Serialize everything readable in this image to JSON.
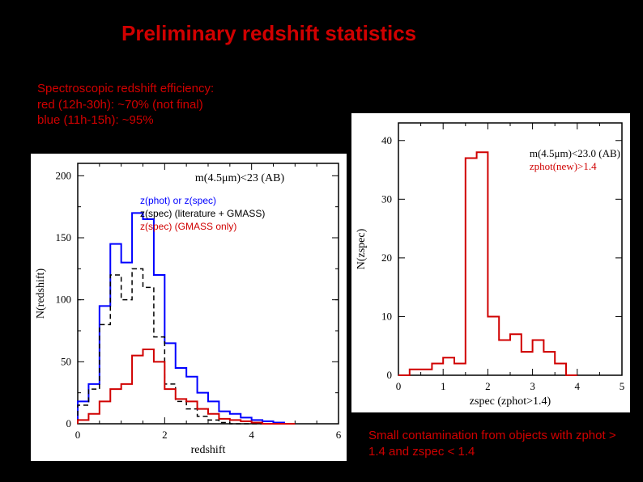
{
  "title": "Preliminary redshift statistics",
  "title_color": "#d00000",
  "efficiency": {
    "line1": "Spectroscopic redshift efficiency:",
    "line2": "red (12h-30h): ~70% (not final)",
    "line3": "blue (11h-15h): ~95%",
    "color": "#d00000"
  },
  "legend_left": {
    "lines": [
      "z(phot) or z(spec)",
      "z(spec) (literature + GMASS)",
      "z(spec) (GMASS only)"
    ],
    "colors": [
      "#0000ff",
      "#000000",
      "#d00000"
    ]
  },
  "chart_left": {
    "type": "histogram",
    "xlabel": "redshift",
    "ylabel": "N(redshift)",
    "xlim": [
      0,
      6
    ],
    "ylim": [
      0,
      210
    ],
    "xticks": [
      0,
      2,
      4,
      6
    ],
    "yticks": [
      0,
      50,
      100,
      150,
      200
    ],
    "yminor": [
      25,
      75,
      100,
      125,
      175
    ],
    "annotation": "m(4.5μm)<23 (AB)",
    "annotation_color": "#000000",
    "bin_width": 0.25,
    "bin_edges": [
      0,
      0.25,
      0.5,
      0.75,
      1,
      1.25,
      1.5,
      1.75,
      2,
      2.25,
      2.5,
      2.75,
      3,
      3.25,
      3.5,
      3.75,
      4,
      4.25,
      4.5,
      4.75,
      5
    ],
    "series": [
      {
        "name": "phot_or_spec",
        "color": "#0000ff",
        "linewidth": 2,
        "dash": "solid",
        "counts": [
          18,
          32,
          95,
          145,
          130,
          170,
          165,
          120,
          65,
          45,
          38,
          25,
          18,
          10,
          8,
          5,
          3,
          2,
          1,
          0
        ]
      },
      {
        "name": "spec_lit_gmass",
        "color": "#000000",
        "linewidth": 1.5,
        "dash": "6,4",
        "counts": [
          15,
          28,
          80,
          120,
          100,
          125,
          110,
          70,
          32,
          18,
          12,
          6,
          3,
          1,
          0,
          0,
          0,
          0,
          0,
          0
        ]
      },
      {
        "name": "spec_gmass_only",
        "color": "#d00000",
        "linewidth": 2,
        "dash": "solid",
        "counts": [
          3,
          8,
          18,
          28,
          32,
          55,
          60,
          50,
          28,
          20,
          18,
          12,
          8,
          4,
          3,
          2,
          1,
          0,
          0,
          0
        ]
      }
    ],
    "background_color": "#ffffff",
    "frame_color": "#000000"
  },
  "chart_right": {
    "type": "histogram",
    "xlabel": "zspec (zphot>1.4)",
    "ylabel": "N(zspec)",
    "xlim": [
      0,
      5
    ],
    "ylim": [
      0,
      43
    ],
    "xticks": [
      0,
      1,
      2,
      3,
      4,
      5
    ],
    "yticks": [
      0,
      10,
      20,
      30,
      40
    ],
    "annotations": [
      {
        "text": "m(4.5μm)<23.0 (AB)",
        "color": "#000000"
      },
      {
        "text": "zphot(new)>1.4",
        "color": "#d00000"
      }
    ],
    "bin_width": 0.25,
    "bin_edges": [
      0,
      0.25,
      0.5,
      0.75,
      1,
      1.25,
      1.5,
      1.75,
      2,
      2.25,
      2.5,
      2.75,
      3,
      3.25,
      3.5,
      3.75,
      4
    ],
    "series": [
      {
        "name": "zspec",
        "color": "#d00000",
        "linewidth": 2,
        "dash": "solid",
        "counts": [
          0,
          1,
          1,
          2,
          3,
          2,
          37,
          38,
          10,
          6,
          7,
          4,
          6,
          4,
          2,
          0
        ]
      }
    ],
    "background_color": "#ffffff",
    "frame_color": "#000000"
  },
  "note": {
    "line1": "Small contamination from objects",
    "line2": "with zphot > 1.4 and zspec < 1.4",
    "color": "#d00000"
  }
}
